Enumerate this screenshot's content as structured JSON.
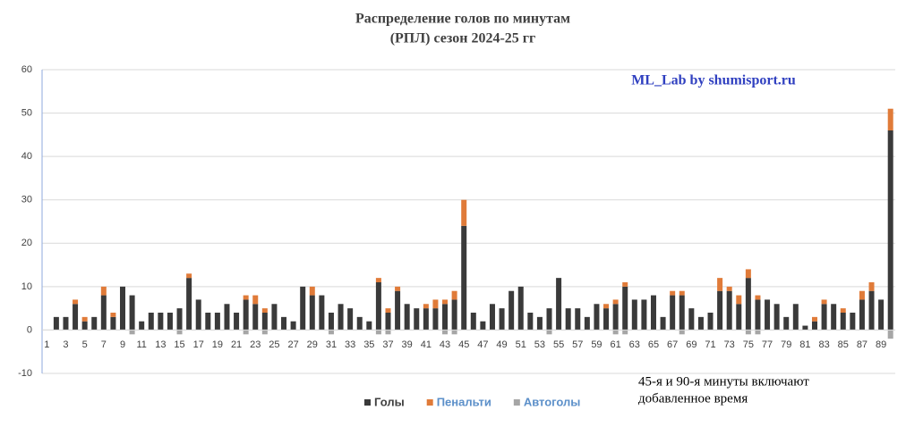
{
  "chart_data": {
    "type": "stacked-bar",
    "title": [
      "Распределение голов по минутам",
      "(РПЛ) сезон 2024-25 гг"
    ],
    "annotations": [
      "ML_Lab by shumisport.ru",
      "45-я и 90-я минуты включают",
      "добавленное время"
    ],
    "categories": [
      "1",
      null,
      "3",
      null,
      "5",
      null,
      "7",
      null,
      "9",
      null,
      "11",
      null,
      "13",
      null,
      "15",
      null,
      "17",
      null,
      "19",
      null,
      "21",
      null,
      "23",
      null,
      "25",
      null,
      "27",
      null,
      "29",
      null,
      "31",
      null,
      "33",
      null,
      "35",
      null,
      "37",
      null,
      "39",
      null,
      "41",
      null,
      "43",
      null,
      "45",
      null,
      "47",
      null,
      "49",
      null,
      "51",
      null,
      "53",
      null,
      "55",
      null,
      "57",
      null,
      "59",
      null,
      "61",
      null,
      "63",
      null,
      "65",
      null,
      "67",
      null,
      "69",
      null,
      "71",
      null,
      "73",
      null,
      "75",
      null,
      "77",
      null,
      "79",
      null,
      "81",
      null,
      "83",
      null,
      "85",
      null,
      "87",
      null,
      "89",
      null
    ],
    "series": [
      {
        "name": "Голы",
        "color": "#3a3a3a",
        "values": [
          0,
          3,
          3,
          6,
          2,
          3,
          8,
          3,
          10,
          8,
          2,
          4,
          4,
          4,
          5,
          12,
          7,
          4,
          4,
          6,
          4,
          7,
          6,
          4,
          6,
          3,
          2,
          10,
          8,
          8,
          4,
          6,
          5,
          3,
          2,
          11,
          4,
          9,
          6,
          5,
          5,
          5,
          6,
          7,
          24,
          4,
          2,
          6,
          5,
          9,
          10,
          4,
          3,
          5,
          12,
          5,
          5,
          3,
          6,
          5,
          6,
          10,
          7,
          7,
          8,
          3,
          8,
          8,
          5,
          3,
          4,
          9,
          9,
          6,
          12,
          7,
          7,
          6,
          3,
          6,
          1,
          2,
          6,
          6,
          4,
          4,
          7,
          9,
          7,
          46
        ]
      },
      {
        "name": "Пенальти",
        "color": "#e07b39",
        "values": [
          0,
          0,
          0,
          1,
          1,
          0,
          2,
          1,
          0,
          0,
          0,
          0,
          0,
          0,
          0,
          1,
          0,
          0,
          0,
          0,
          0,
          1,
          2,
          1,
          0,
          0,
          0,
          0,
          2,
          0,
          0,
          0,
          0,
          0,
          0,
          1,
          1,
          1,
          0,
          0,
          1,
          2,
          1,
          2,
          6,
          0,
          0,
          0,
          0,
          0,
          0,
          0,
          0,
          0,
          0,
          0,
          0,
          0,
          0,
          1,
          1,
          1,
          0,
          0,
          0,
          0,
          1,
          1,
          0,
          0,
          0,
          3,
          1,
          2,
          2,
          1,
          0,
          0,
          0,
          0,
          0,
          1,
          1,
          0,
          1,
          0,
          2,
          2,
          0,
          5
        ]
      },
      {
        "name": "Автоголы",
        "color": "#a6a6a6",
        "values": [
          0,
          0,
          0,
          0,
          0,
          0,
          0,
          0,
          0,
          -1,
          0,
          0,
          0,
          0,
          -1,
          0,
          0,
          0,
          0,
          0,
          0,
          -1,
          0,
          -1,
          0,
          0,
          0,
          0,
          0,
          0,
          -1,
          0,
          0,
          0,
          0,
          -1,
          -1,
          0,
          0,
          0,
          0,
          0,
          -1,
          -1,
          0,
          0,
          0,
          0,
          0,
          0,
          0,
          0,
          0,
          -1,
          0,
          0,
          0,
          0,
          0,
          0,
          -1,
          -1,
          0,
          0,
          0,
          0,
          0,
          -1,
          0,
          0,
          0,
          0,
          0,
          0,
          -1,
          -1,
          0,
          0,
          0,
          0,
          0,
          0,
          0,
          0,
          0,
          0,
          0,
          0,
          0,
          -2
        ]
      }
    ],
    "ylim": [
      -10,
      60
    ],
    "yticks": [
      -10,
      0,
      10,
      20,
      30,
      40,
      50,
      60
    ],
    "grid": true,
    "legend": "bottom"
  }
}
